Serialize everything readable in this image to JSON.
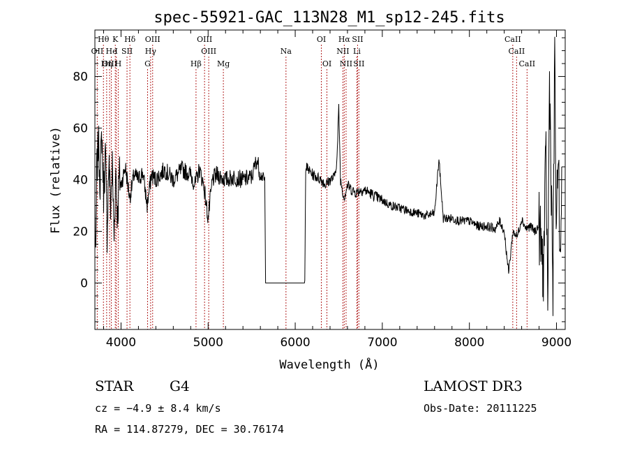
{
  "chart_data": {
    "type": "line",
    "title": "spec-55921-GAC_113N28_M1_sp12-245.fits",
    "xlabel": "Wavelength (Å)",
    "ylabel": "Flux (relative)",
    "xlim": [
      3700,
      9100
    ],
    "ylim": [
      -18,
      98
    ],
    "x_ticks": [
      4000,
      5000,
      6000,
      7000,
      8000,
      9000
    ],
    "y_ticks": [
      0,
      20,
      40,
      60,
      80
    ],
    "grid": false,
    "line_color": "#000000",
    "marker_color": "#b22222",
    "spectrum_anchors": [
      [
        3700,
        30
      ],
      [
        3710,
        5
      ],
      [
        3720,
        42
      ],
      [
        3740,
        55
      ],
      [
        3760,
        40
      ],
      [
        3780,
        58
      ],
      [
        3800,
        35
      ],
      [
        3820,
        50
      ],
      [
        3840,
        20
      ],
      [
        3860,
        48
      ],
      [
        3880,
        30
      ],
      [
        3900,
        45
      ],
      [
        3920,
        18
      ],
      [
        3940,
        44
      ],
      [
        3960,
        25
      ],
      [
        3980,
        42
      ],
      [
        4000,
        38
      ],
      [
        4050,
        45
      ],
      [
        4100,
        33
      ],
      [
        4150,
        42
      ],
      [
        4200,
        40
      ],
      [
        4250,
        43
      ],
      [
        4300,
        30
      ],
      [
        4350,
        42
      ],
      [
        4400,
        40
      ],
      [
        4500,
        44
      ],
      [
        4600,
        40
      ],
      [
        4700,
        44
      ],
      [
        4800,
        42
      ],
      [
        4850,
        38
      ],
      [
        4900,
        44
      ],
      [
        4950,
        38
      ],
      [
        5000,
        25
      ],
      [
        5050,
        40
      ],
      [
        5100,
        42
      ],
      [
        5200,
        40
      ],
      [
        5300,
        41
      ],
      [
        5400,
        40
      ],
      [
        5500,
        41
      ],
      [
        5560,
        48
      ],
      [
        5600,
        42
      ],
      [
        5650,
        40
      ],
      [
        5660,
        0
      ],
      [
        6110,
        0
      ],
      [
        6120,
        45
      ],
      [
        6200,
        42
      ],
      [
        6300,
        40
      ],
      [
        6350,
        38
      ],
      [
        6400,
        40
      ],
      [
        6450,
        41
      ],
      [
        6480,
        48
      ],
      [
        6500,
        68
      ],
      [
        6520,
        40
      ],
      [
        6560,
        33
      ],
      [
        6600,
        38
      ],
      [
        6650,
        36
      ],
      [
        6700,
        35
      ],
      [
        6750,
        36
      ],
      [
        6800,
        36
      ],
      [
        6900,
        34
      ],
      [
        7000,
        32
      ],
      [
        7100,
        30
      ],
      [
        7200,
        29
      ],
      [
        7300,
        28
      ],
      [
        7400,
        27
      ],
      [
        7500,
        26
      ],
      [
        7600,
        27
      ],
      [
        7650,
        48
      ],
      [
        7700,
        25
      ],
      [
        7800,
        25
      ],
      [
        7900,
        24
      ],
      [
        8000,
        24
      ],
      [
        8100,
        22
      ],
      [
        8200,
        22
      ],
      [
        8300,
        21
      ],
      [
        8350,
        24
      ],
      [
        8400,
        20
      ],
      [
        8450,
        4
      ],
      [
        8500,
        20
      ],
      [
        8550,
        18
      ],
      [
        8600,
        25
      ],
      [
        8650,
        21
      ],
      [
        8700,
        22
      ],
      [
        8750,
        20
      ],
      [
        8800,
        22
      ],
      [
        8850,
        5
      ],
      [
        8880,
        50
      ],
      [
        8900,
        -10
      ],
      [
        8920,
        80
      ],
      [
        8940,
        40
      ],
      [
        8960,
        -5
      ],
      [
        8980,
        92
      ],
      [
        9000,
        10
      ],
      [
        9020,
        60
      ],
      [
        9040,
        0
      ],
      [
        9060,
        45
      ]
    ],
    "line_markers": [
      {
        "label": "Hθ",
        "x": 3798,
        "row": 0
      },
      {
        "label": "OII",
        "x": 3727,
        "row": 1
      },
      {
        "label": "OIII",
        "x": 3869,
        "row": 2
      },
      {
        "label": "He",
        "x": 3889,
        "row": 1
      },
      {
        "label": "Hη",
        "x": 3835,
        "row": 2
      },
      {
        "label": "K",
        "x": 3934,
        "row": 0
      },
      {
        "label": "I",
        "x": 3946,
        "row": 1
      },
      {
        "label": "H",
        "x": 3968,
        "row": 2
      },
      {
        "label": "Hδ",
        "x": 4102,
        "row": 0
      },
      {
        "label": "SII",
        "x": 4069,
        "row": 1
      },
      {
        "label": "OIII",
        "x": 4363,
        "row": 0
      },
      {
        "label": "Hγ",
        "x": 4340,
        "row": 1
      },
      {
        "label": "G",
        "x": 4305,
        "row": 2
      },
      {
        "label": "Hβ",
        "x": 4861,
        "row": 2
      },
      {
        "label": "OIII",
        "x": 4959,
        "row": 0
      },
      {
        "label": "OIII",
        "x": 5007,
        "row": 1
      },
      {
        "label": "Mg",
        "x": 5175,
        "row": 2
      },
      {
        "label": "Na",
        "x": 5894,
        "row": 1
      },
      {
        "label": "OI",
        "x": 6300,
        "row": 0
      },
      {
        "label": "OI",
        "x": 6364,
        "row": 2
      },
      {
        "label": "Hα",
        "x": 6563,
        "row": 0
      },
      {
        "label": "SII",
        "x": 6716,
        "row": 0
      },
      {
        "label": "NII",
        "x": 6548,
        "row": 1
      },
      {
        "label": "Li",
        "x": 6708,
        "row": 1
      },
      {
        "label": "NII",
        "x": 6584,
        "row": 2
      },
      {
        "label": "SII",
        "x": 6731,
        "row": 2
      },
      {
        "label": "CaII",
        "x": 8498,
        "row": 0
      },
      {
        "label": "CaII",
        "x": 8542,
        "row": 1
      },
      {
        "label": "CaII",
        "x": 8662,
        "row": 2
      }
    ]
  },
  "info": {
    "object_class": "STAR",
    "subclass": "G4",
    "survey": "LAMOST DR3",
    "redshift": "cz = −4.9 ± 8.4 km/s",
    "obs_date": "Obs-Date: 20111225",
    "coords": "RA = 114.87279, DEC =  30.76174"
  }
}
